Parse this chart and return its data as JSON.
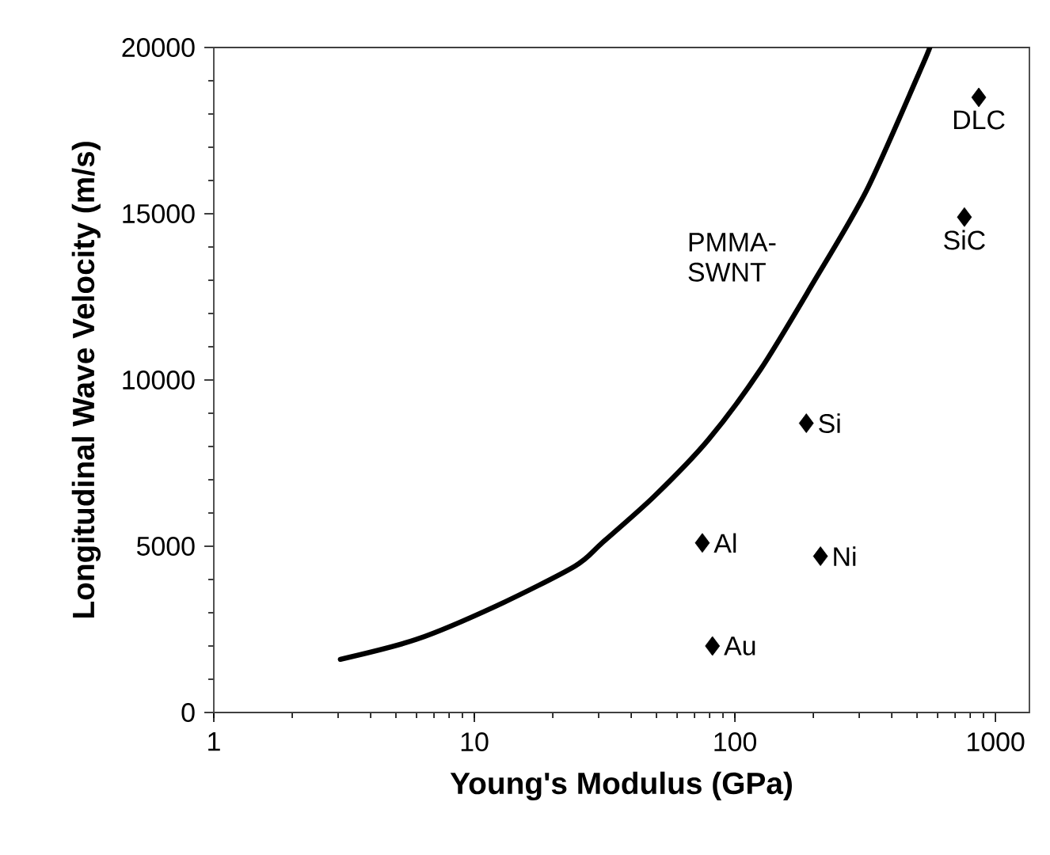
{
  "chart_data": {
    "type": "scatter",
    "xlabel": "Young's Modulus (GPa)",
    "ylabel": "Longitudinal Wave Velocity (m/s)",
    "log": "x",
    "xlim": [
      1,
      1350
    ],
    "xticks": [
      1,
      10,
      100,
      1000
    ],
    "ylim": [
      0,
      20000
    ],
    "yticks": [
      0,
      5000,
      10000,
      15000,
      20000
    ],
    "grid": false,
    "legend": false,
    "marker": "diamond",
    "series": [
      {
        "type": "line",
        "name": "PMMA-SWNT",
        "color": "#000000",
        "marker": "none",
        "line_style": "solid",
        "x": [
          3.06,
          6.0,
          12.1,
          24.3,
          30.9,
          49,
          79,
          125,
          199,
          320,
          507,
          560
        ],
        "values": [
          1600,
          2200,
          3200,
          4400,
          5100,
          6500,
          8200,
          10300,
          12900,
          15700,
          19200,
          20000
        ]
      },
      {
        "color": "#000000",
        "x": [
          75,
          82,
          188,
          213,
          760,
          863
        ],
        "values": [
          5100,
          2000,
          8700,
          4700,
          14900,
          18500
        ]
      }
    ],
    "annotations": [
      {
        "text": "Al",
        "x": 75,
        "y": 5100
      },
      {
        "text": "Au",
        "x": 82,
        "y": 2000
      },
      {
        "text": "Si",
        "x": 188,
        "y": 8700
      },
      {
        "text": "Ni",
        "x": 213,
        "y": 4700
      },
      {
        "text": "SiC",
        "x": 760,
        "y": 14900
      },
      {
        "text": "DLC",
        "x": 863,
        "y": 18500
      }
    ]
  }
}
